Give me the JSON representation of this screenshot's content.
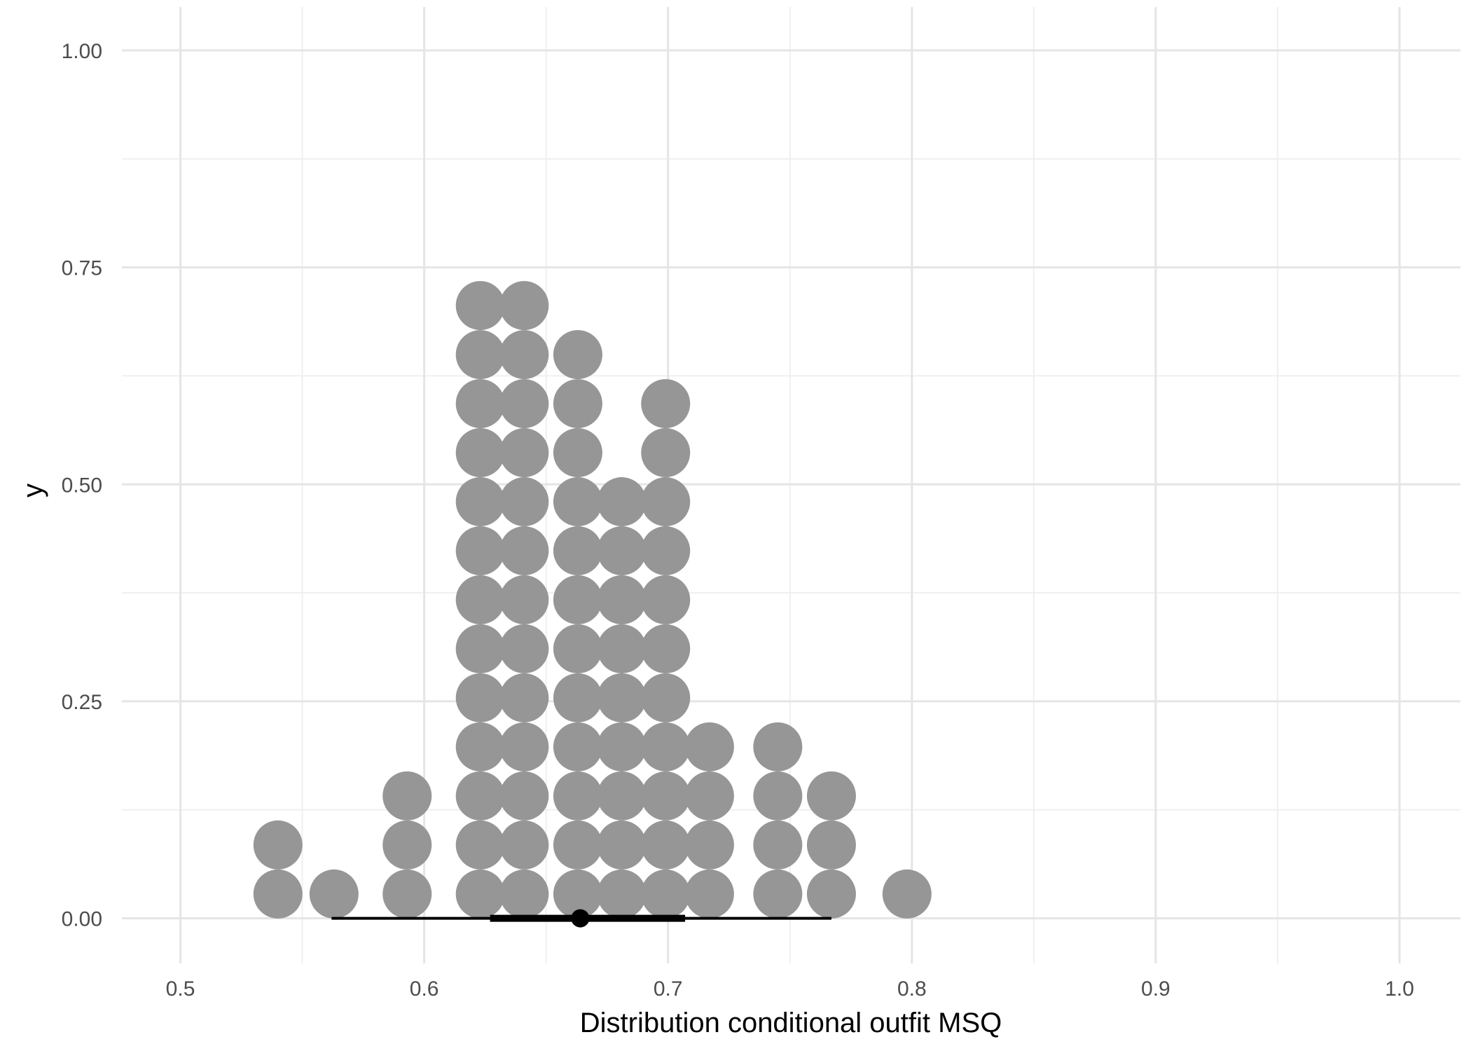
{
  "chart_data": {
    "type": "dotplot",
    "title": "",
    "xlabel": "Distribution conditional outfit MSQ",
    "ylabel": "y",
    "xlim": [
      0.476,
      1.025
    ],
    "ylim": [
      -0.052,
      1.05
    ],
    "grid": true,
    "legend": "none",
    "x_ticks": [
      0.5,
      0.6,
      0.7,
      0.8,
      0.9,
      1.0
    ],
    "x_tick_labels": [
      "0.5",
      "0.6",
      "0.7",
      "0.8",
      "0.9",
      "1.0"
    ],
    "y_ticks": [
      0.0,
      0.25,
      0.5,
      0.75,
      1.0
    ],
    "y_tick_labels": [
      "0.00",
      "0.25",
      "0.50",
      "0.75",
      "1.00"
    ],
    "dot_radius": 0.0095,
    "dot_step": 0.0565,
    "dot_base": 0.028,
    "dot_columns": [
      {
        "x": 0.54,
        "count": 2
      },
      {
        "x": 0.563,
        "count": 1
      },
      {
        "x": 0.593,
        "count": 3
      },
      {
        "x": 0.623,
        "count": 13
      },
      {
        "x": 0.641,
        "count": 13
      },
      {
        "x": 0.663,
        "count": 12
      },
      {
        "x": 0.681,
        "count": 9
      },
      {
        "x": 0.699,
        "count": 11
      },
      {
        "x": 0.717,
        "count": 4
      },
      {
        "x": 0.745,
        "count": 4
      },
      {
        "x": 0.767,
        "count": 3
      },
      {
        "x": 0.798,
        "count": 1
      }
    ],
    "interval": {
      "point": 0.664,
      "inner": [
        0.627,
        0.707
      ],
      "outer": [
        0.562,
        0.767
      ]
    },
    "colors": {
      "dots": "#969696",
      "interval": "#000000",
      "grid_major": "#e5e5e5",
      "grid_minor": "#efefef"
    }
  }
}
